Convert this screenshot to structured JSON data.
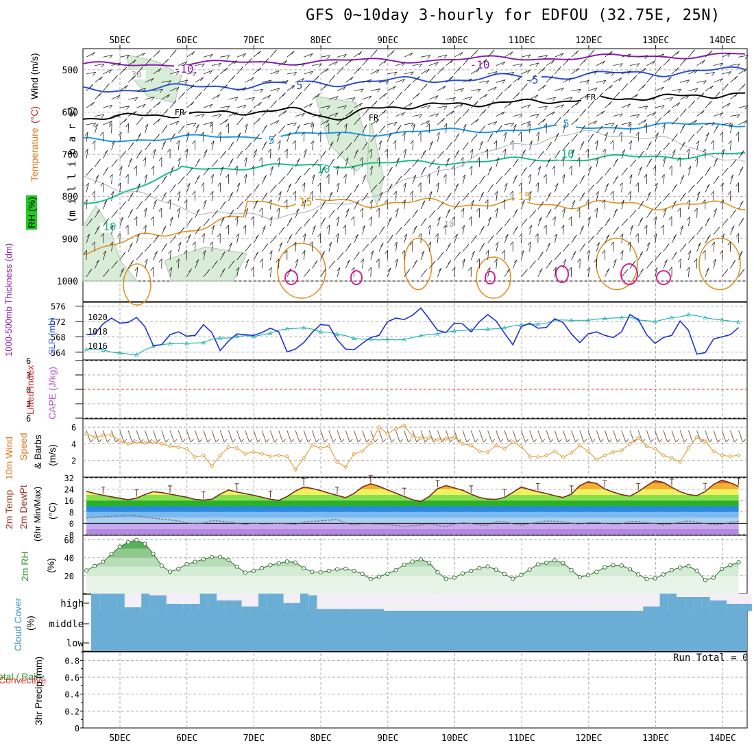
{
  "title": "GFS 0~10day 3-hourly for EDFOU (32.75E, 25N)",
  "colors": {
    "grid": "#aaaaaa",
    "purple": "#8a1ab4",
    "blue": "#2a4fd8",
    "skyblue": "#1e96e6",
    "teal": "#16c08a",
    "orange": "#e0911e",
    "magenta": "#d61e8c",
    "black": "#000000",
    "slp": "#1e2fd8",
    "thick": "#25b3b3",
    "wind10": "#e0911e",
    "rh2m": "#2a9a2a",
    "cloud": "#6aaed6",
    "lifted_zero": "#e03030"
  },
  "x_axis": {
    "dates": [
      "5DEC",
      "6DEC",
      "7DEC",
      "8DEC",
      "9DEC",
      "10DEC",
      "11DEC",
      "12DEC",
      "13DEC",
      "14DEC"
    ]
  },
  "panels": {
    "upper": {
      "ylabel_main": "(m i l l i b a r s)",
      "ylabel_wind": "Wind (m/s)",
      "ylabel_temp": "Temperature",
      "ylabel_temp_unit": "(°C)",
      "ylabel_rh": "RH (%)",
      "ticks": [
        "500",
        "600",
        "700",
        "800",
        "900",
        "1000"
      ],
      "contour_labels": {
        "m10_left": "-10",
        "m10_right": "-10",
        "m5a": "-5",
        "m5b": "-5",
        "fr1": "FR",
        "fr2": "FR",
        "fr3": "FR",
        "p5": "5",
        "p5b": "5",
        "p10a": "10",
        "p10b": "10",
        "p10c": "10",
        "p15a": "15",
        "p15b": "15",
        "rh30": "30",
        "rh10": "10"
      }
    },
    "slp": {
      "ylabel_thick": "1000-500mb Thickness (dm)",
      "ylabel_slp": "SLP (mb)",
      "left_ticks": [
        "576",
        "572",
        "568",
        "564"
      ],
      "right_ticks": [
        "1020",
        "1018",
        "1016"
      ]
    },
    "cape": {
      "ylabel_li": "Lifted Index",
      "ylabel_cape": "CAPE (J/kg)",
      "ticks": [
        "6",
        "3",
        "0",
        "3",
        "6"
      ]
    },
    "wind10": {
      "ylabel_a": "10m Wind",
      "ylabel_b": "Speed",
      "ylabel_c": "& Barbs",
      "ylabel_unit": "(m/s)",
      "ticks": [
        "6",
        "4",
        "2"
      ]
    },
    "temp": {
      "ylabel_a": "2m Temp",
      "ylabel_b": "2m DewPt",
      "ylabel_c": "(6hr Min/Max)",
      "ylabel_unit": "(°C)",
      "ticks": [
        "32",
        "24",
        "16",
        "8",
        "0",
        "-8"
      ]
    },
    "rh": {
      "ylabel": "2m RH",
      "ylabel_unit": "(%)",
      "ticks": [
        "60",
        "40",
        "20"
      ]
    },
    "cloud": {
      "ylabel": "Cloud Cover",
      "ylabel_unit": "(%)",
      "ticks": [
        "high",
        "middle",
        "low"
      ]
    },
    "precip": {
      "ylabel_a": "Total / Rain",
      "ylabel_b": "Convective",
      "ylabel_c": "3hr Precip (mm)",
      "ticks": [
        "0.8",
        "0.6",
        "0.4",
        "0.2",
        "0"
      ],
      "run_total": "Run Total = 0"
    }
  },
  "chart_data": [
    {
      "type": "line",
      "title": "",
      "xlabel": "",
      "ylabel": "SLP (mb)",
      "x": [
        "4DEC 12",
        "4DEC 15",
        "4DEC 18",
        "4DEC 21",
        "5DEC 00",
        "5DEC 03",
        "5DEC 06",
        "5DEC 09",
        "5DEC 12",
        "5DEC 15",
        "5DEC 18",
        "5DEC 21",
        "6DEC 00",
        "6DEC 03",
        "6DEC 06",
        "6DEC 09",
        "6DEC 12",
        "6DEC 15",
        "6DEC 18",
        "6DEC 21",
        "7DEC 00",
        "7DEC 03",
        "7DEC 06",
        "7DEC 09",
        "7DEC 12",
        "7DEC 15",
        "7DEC 18",
        "7DEC 21",
        "8DEC 00",
        "8DEC 03",
        "8DEC 06",
        "8DEC 09",
        "8DEC 12",
        "8DEC 15",
        "8DEC 18",
        "8DEC 21",
        "9DEC 00",
        "9DEC 03",
        "9DEC 06",
        "9DEC 09",
        "9DEC 12",
        "9DEC 15",
        "9DEC 18",
        "9DEC 21",
        "10DEC 00",
        "10DEC 03",
        "10DEC 06",
        "10DEC 09",
        "10DEC 12",
        "10DEC 15",
        "10DEC 18",
        "10DEC 21",
        "11DEC 00",
        "11DEC 03",
        "11DEC 06",
        "11DEC 09",
        "11DEC 12",
        "11DEC 15",
        "11DEC 18",
        "11DEC 21",
        "12DEC 00",
        "12DEC 03",
        "12DEC 06",
        "12DEC 09",
        "12DEC 12",
        "12DEC 15",
        "12DEC 18",
        "12DEC 21",
        "13DEC 00",
        "13DEC 03",
        "13DEC 06",
        "13DEC 09",
        "13DEC 12",
        "13DEC 15",
        "13DEC 18",
        "13DEC 21",
        "14DEC 00",
        "14DEC 03",
        "14DEC 06"
      ],
      "series": [
        {
          "name": "SLP (mb)",
          "values": [
            1017.5,
            1017.6,
            1019.0,
            1019.8,
            1019.1,
            1019.2,
            1019.9,
            1018.6,
            1016.0,
            1016.1,
            1017.5,
            1017.9,
            1017.3,
            1017.4,
            1018.9,
            1017.8,
            1015.3,
            1016.6,
            1017.6,
            1017.5,
            1017.4,
            1017.8,
            1018.4,
            1017.9,
            1015.1,
            1015.5,
            1016.4,
            1017.8,
            1018.9,
            1018.8,
            1016.8,
            1015.5,
            1015.4,
            1016.3,
            1017.1,
            1017.4,
            1019.3,
            1019.8,
            1019.6,
            1020.2,
            1021.2,
            1019.7,
            1018.1,
            1017.8,
            1019.1,
            1019.0,
            1017.9,
            1019.3,
            1020.3,
            1019.4,
            1017.7,
            1016.1,
            1018.6,
            1019.1,
            1018.4,
            1018.5,
            1019.7,
            1019.2,
            1017.6,
            1016.4,
            1017.6,
            1017.9,
            1017.4,
            1017.1,
            1017.9,
            1020.3,
            1019.6,
            1017.5,
            1016.3,
            1017.1,
            1017.4,
            1019.4,
            1018.1,
            1014.8,
            1015.0,
            1016.9,
            1017.2,
            1017.5,
            1018.5
          ]
        }
      ],
      "ylim": [
        1014,
        1022
      ]
    },
    {
      "type": "line",
      "title": "",
      "ylabel": "1000-500mb Thickness (dm)",
      "series": [
        {
          "name": "1000-500mb Thickness (dm)",
          "values": [
            564.7,
            564.8,
            564.6,
            564.0,
            563.8,
            563.5,
            563.3,
            564.6,
            565.5,
            566.0,
            566.2,
            566.3,
            566.3,
            566.4,
            566.5,
            567.4,
            567.7,
            567.7,
            568.1,
            568.3,
            568.1,
            568.5,
            568.9,
            569.7,
            570.1,
            570.2,
            570.4,
            570.0,
            569.3,
            569.2,
            568.7,
            568.3,
            567.6,
            567.4,
            567.3,
            567.2,
            567.3,
            567.2,
            567.3,
            567.8,
            568.3,
            568.6,
            568.8,
            569.2,
            569.5,
            569.7,
            569.8,
            569.9,
            570.0,
            570.1,
            570.4,
            570.8,
            571.1,
            571.2,
            571.3,
            571.5,
            572.4,
            572.4,
            572.3,
            572.3,
            572.3,
            572.6,
            572.8,
            572.9,
            573.0,
            573.1,
            572.4,
            572.2,
            572.0,
            572.5,
            573.0,
            573.2,
            573.8,
            573.5,
            573.0,
            572.6,
            572.4,
            572.1,
            571.8
          ]
        }
      ],
      "ylim": [
        562,
        577
      ]
    },
    {
      "type": "line",
      "title": "",
      "ylabel": "(m/s)",
      "series": [
        {
          "name": "10m Wind Speed",
          "values": [
            5.2,
            4.8,
            5.0,
            5.1,
            4.3,
            4.0,
            4.2,
            4.1,
            4.2,
            4.0,
            3.7,
            3.6,
            3.4,
            2.4,
            2.6,
            1.3,
            2.6,
            3.6,
            3.5,
            2.8,
            3.0,
            2.8,
            2.5,
            2.6,
            2.5,
            0.9,
            2.3,
            3.8,
            3.5,
            3.7,
            1.8,
            1.2,
            2.8,
            3.1,
            4.1,
            6.0,
            5.2,
            5.8,
            6.2,
            4.9,
            4.7,
            4.7,
            4.5,
            4.6,
            4.8,
            4.0,
            3.8,
            3.1,
            3.0,
            3.8,
            3.4,
            4.2,
            3.7,
            2.5,
            2.4,
            2.6,
            3.1,
            2.4,
            2.9,
            3.8,
            3.1,
            2.1,
            2.6,
            3.0,
            3.2,
            4.0,
            4.7,
            3.7,
            3.4,
            2.6,
            2.3,
            1.8,
            3.5,
            4.8,
            4.3,
            3.1,
            2.6,
            2.5,
            2.6
          ]
        }
      ],
      "ylim": [
        0,
        7
      ]
    },
    {
      "type": "area",
      "title": "",
      "ylabel": "(°C)",
      "series": [
        {
          "name": "2m Temp",
          "values": [
            22.5,
            20.9,
            19.7,
            18.6,
            17.6,
            16.5,
            17.7,
            20.2,
            22.2,
            21.6,
            20.5,
            19.4,
            18.3,
            16.8,
            16.3,
            16.9,
            20.5,
            23.4,
            22.0,
            20.8,
            19.7,
            18.3,
            16.9,
            16.1,
            18.8,
            22.6,
            25.5,
            24.5,
            23.0,
            21.2,
            19.6,
            18.0,
            20.9,
            25.5,
            27.8,
            26.0,
            23.5,
            21.2,
            18.9,
            16.6,
            15.3,
            18.9,
            24.3,
            26.5,
            24.8,
            23.2,
            20.5,
            18.2,
            17.0,
            16.8,
            18.2,
            21.7,
            25.5,
            23.7,
            22.2,
            20.9,
            19.4,
            18.1,
            20.5,
            26.4,
            29.2,
            28.0,
            24.1,
            21.9,
            20.1,
            19.1,
            22.2,
            26.3,
            30.0,
            28.7,
            25.3,
            22.2,
            20.2,
            19.4,
            22.3,
            27.3,
            30.3,
            28.5,
            25.9
          ]
        },
        {
          "name": "2m DewPt",
          "values": [
            3.6,
            4.3,
            4.6,
            4.9,
            5.2,
            5.5,
            5.2,
            4.4,
            3.6,
            2.9,
            2.3,
            1.6,
            0.4,
            -0.2,
            0.3,
            1.9,
            1.5,
            1.0,
            0.1,
            -0.9,
            0.2,
            -0.5,
            -0.4,
            0.1,
            -0.4,
            -0.9,
            0.8,
            1.4,
            1.7,
            2.2,
            2.7,
            0.1,
            -1.3,
            -0.4,
            -0.4,
            -0.7,
            -1.0,
            -1.4,
            -2.2,
            -1.7,
            -1.2,
            -0.5,
            -1.4,
            -2.4,
            -0.6,
            0.5,
            -0.1,
            -1.3,
            -1.3,
            1.2,
            1.0,
            -0.3,
            -1.4,
            -0.2,
            0.7,
            1.6,
            1.5,
            1.0,
            0.2,
            -0.6,
            0.6,
            0.8,
            -0.1,
            -0.5,
            -0.4,
            1.3,
            1.2,
            0.5,
            -0.1,
            -1.3,
            -0.4,
            0.8,
            1.7,
            0.8,
            -0.1,
            -1.0,
            -0.7,
            0.7,
            1.4
          ]
        }
      ],
      "ylim": [
        -8,
        32
      ]
    },
    {
      "type": "area",
      "title": "",
      "ylabel": "(%)",
      "series": [
        {
          "name": "2m RH",
          "values": [
            25.8,
            30.8,
            35.5,
            44.2,
            52.4,
            57.3,
            59.8,
            55.5,
            44.5,
            31.2,
            24.4,
            27.6,
            32.8,
            35.5,
            38.4,
            40.8,
            40.8,
            37.5,
            30.1,
            23.5,
            25.4,
            28.4,
            31.7,
            33.9,
            35.8,
            34.8,
            28.2,
            24.3,
            23.8,
            25.4,
            27.1,
            27.8,
            25.4,
            22.1,
            16.1,
            18.8,
            22.2,
            26.1,
            32.2,
            35.7,
            38.1,
            34.3,
            23.8,
            16.5,
            17.8,
            22.4,
            25.4,
            28.5,
            30.3,
            26.7,
            21.9,
            16.6,
            20.8,
            26.8,
            32.6,
            34.5,
            37.1,
            34.2,
            26.2,
            18.4,
            20.5,
            24.3,
            29.3,
            31.8,
            31.4,
            27.2,
            21.4,
            16.3,
            17.0,
            21.3,
            26.2,
            29.1,
            30.7,
            25.6,
            15.0,
            17.8,
            27.5,
            31.8,
            35.0
          ]
        }
      ],
      "ylim": [
        0,
        65
      ]
    },
    {
      "type": "bar",
      "title": "",
      "ylabel": "Cloud Cover (%)",
      "categories": [
        "low",
        "middle",
        "high"
      ],
      "values": [
        100,
        100,
        70
      ]
    },
    {
      "type": "bar",
      "title": "",
      "ylabel": "3hr Precip (mm)",
      "series": [
        {
          "name": "Run Total",
          "values": [
            0
          ]
        }
      ],
      "ylim": [
        0,
        0.9
      ]
    }
  ]
}
